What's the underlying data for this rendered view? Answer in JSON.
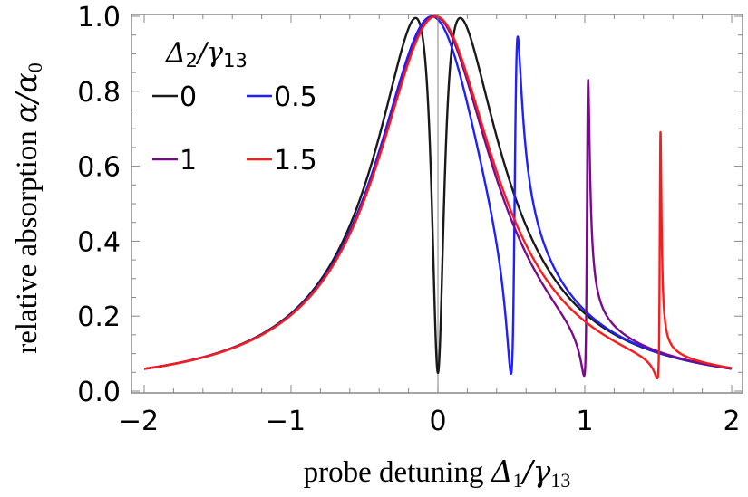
{
  "chart_data": {
    "type": "line",
    "title": "",
    "xlabel": "probe detuning Δ₁/γ₁₃",
    "ylabel": "relative absorption α/α₀",
    "xlabel_parts": {
      "text": "probe detuning ",
      "math": "Δ",
      "sub": "1",
      "rest": "/γ",
      "sub2": "13"
    },
    "ylabel_parts": {
      "text": "relative absorption ",
      "math": "α/α",
      "sub": "0"
    },
    "xlim": [
      -2,
      2
    ],
    "ylim": [
      0,
      1
    ],
    "xticks": [
      "−2",
      "−1",
      "0",
      "1",
      "2"
    ],
    "xtick_values": [
      -2,
      -1,
      0,
      1,
      2
    ],
    "yticks": [
      "0.0",
      "0.2",
      "0.4",
      "0.6",
      "0.8",
      "1.0"
    ],
    "ytick_values": [
      0,
      0.2,
      0.4,
      0.6,
      0.8,
      1.0
    ],
    "grid": false,
    "legend": {
      "placement": "top-left",
      "title": "Δ₂/γ₁₃",
      "title_parts": {
        "math": "Δ",
        "sub": "2",
        "rest": "/γ",
        "sub2": "13"
      }
    },
    "series": [
      {
        "name": "0",
        "delta2": 0,
        "color": "#1a1a1a"
      },
      {
        "name": "0.5",
        "delta2": 0.5,
        "color": "#1f1fff"
      },
      {
        "name": "1",
        "delta2": 1,
        "color": "#7a0a8c"
      },
      {
        "name": "1.5",
        "delta2": 1.5,
        "color": "#ff1a1a"
      }
    ],
    "reference_line": {
      "x": 0,
      "color": "#999999"
    }
  }
}
